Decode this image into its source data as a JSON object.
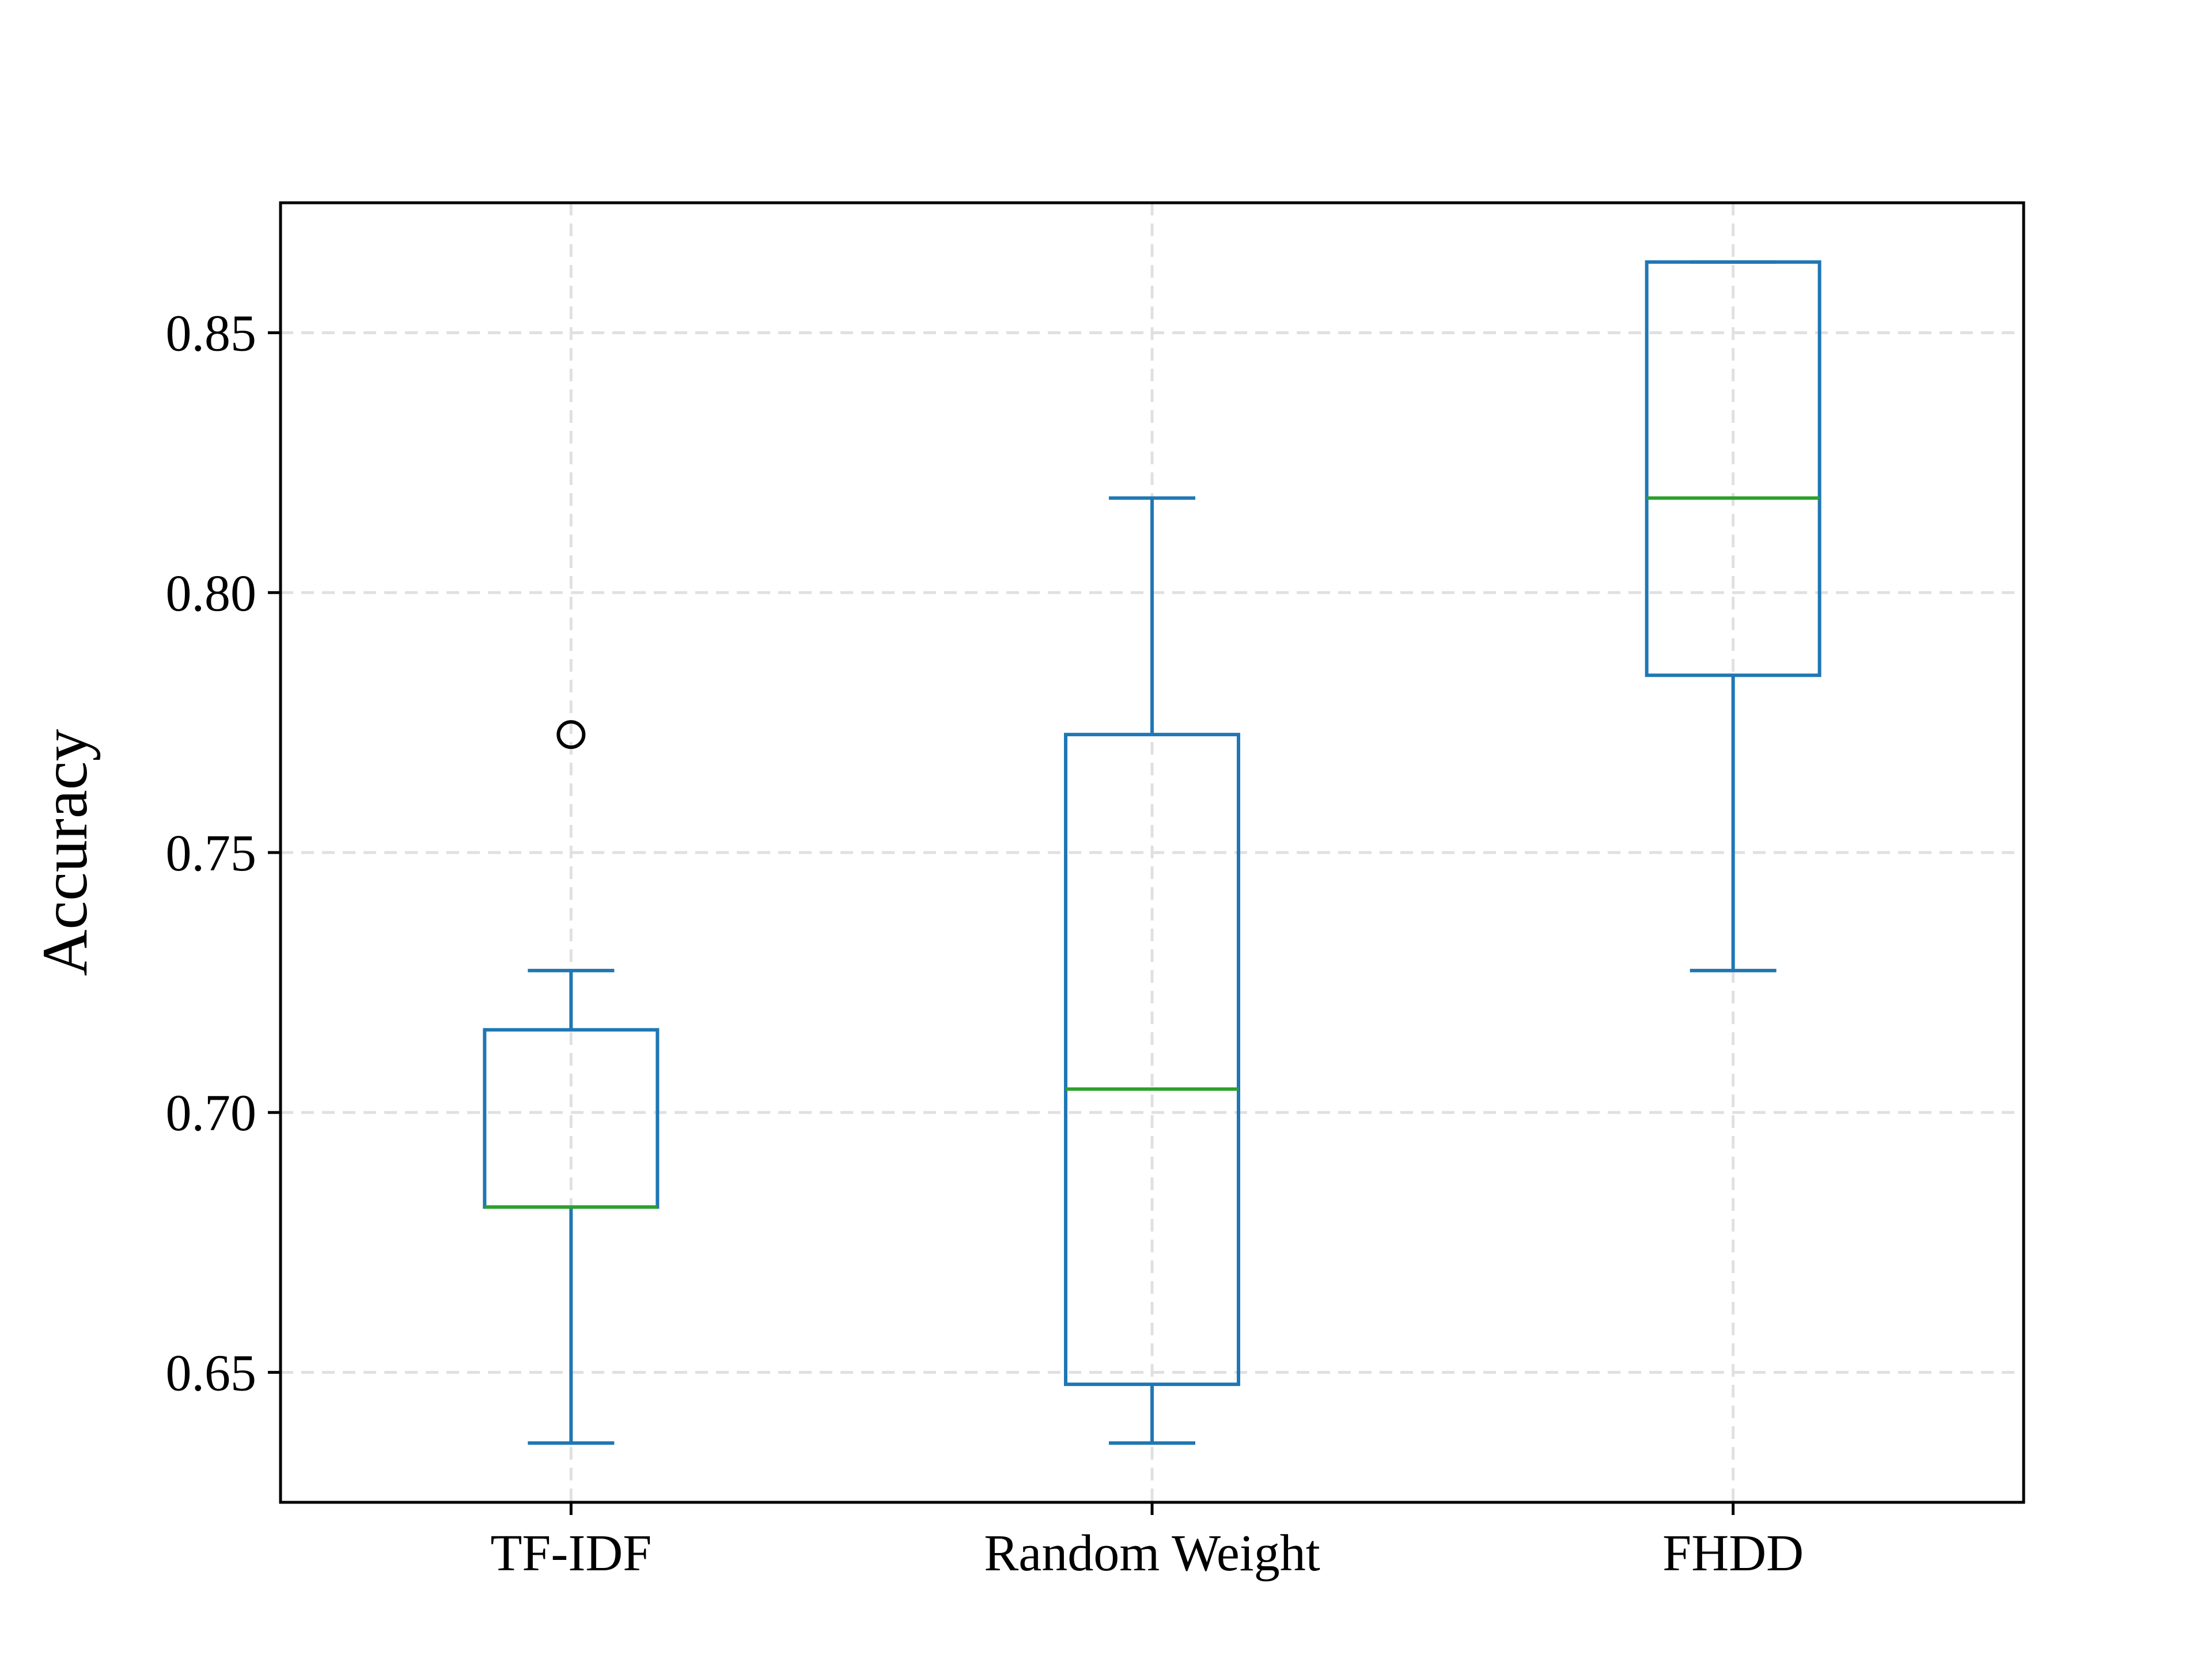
{
  "chart_data": {
    "type": "box",
    "title": "",
    "xlabel": "",
    "ylabel": "Accuracy",
    "ylim": [
      0.625,
      0.875
    ],
    "yticks": [
      0.65,
      0.7,
      0.75,
      0.8,
      0.85
    ],
    "ytick_labels": [
      "0.65",
      "0.70",
      "0.75",
      "0.80",
      "0.85"
    ],
    "grid": true,
    "grid_style": "dashed",
    "colors": {
      "box": "#1f77b4",
      "median": "#2ca02c",
      "flier": "#000000",
      "grid": "#e0e0e0",
      "axes": "#000000"
    },
    "categories": [
      "TF-IDF",
      "Random Weight",
      "FHDD"
    ],
    "boxes": [
      {
        "label": "TF-IDF",
        "whislo": 0.6364,
        "q1": 0.6818,
        "med": 0.6818,
        "q3": 0.7159,
        "whishi": 0.7273,
        "fliers": [
          0.7727
        ]
      },
      {
        "label": "Random Weight",
        "whislo": 0.6364,
        "q1": 0.6477,
        "med": 0.7045,
        "q3": 0.7727,
        "whishi": 0.8182,
        "fliers": []
      },
      {
        "label": "FHDD",
        "whislo": 0.7273,
        "q1": 0.7841,
        "med": 0.8182,
        "q3": 0.8636,
        "whishi": 0.8636,
        "fliers": []
      }
    ]
  }
}
